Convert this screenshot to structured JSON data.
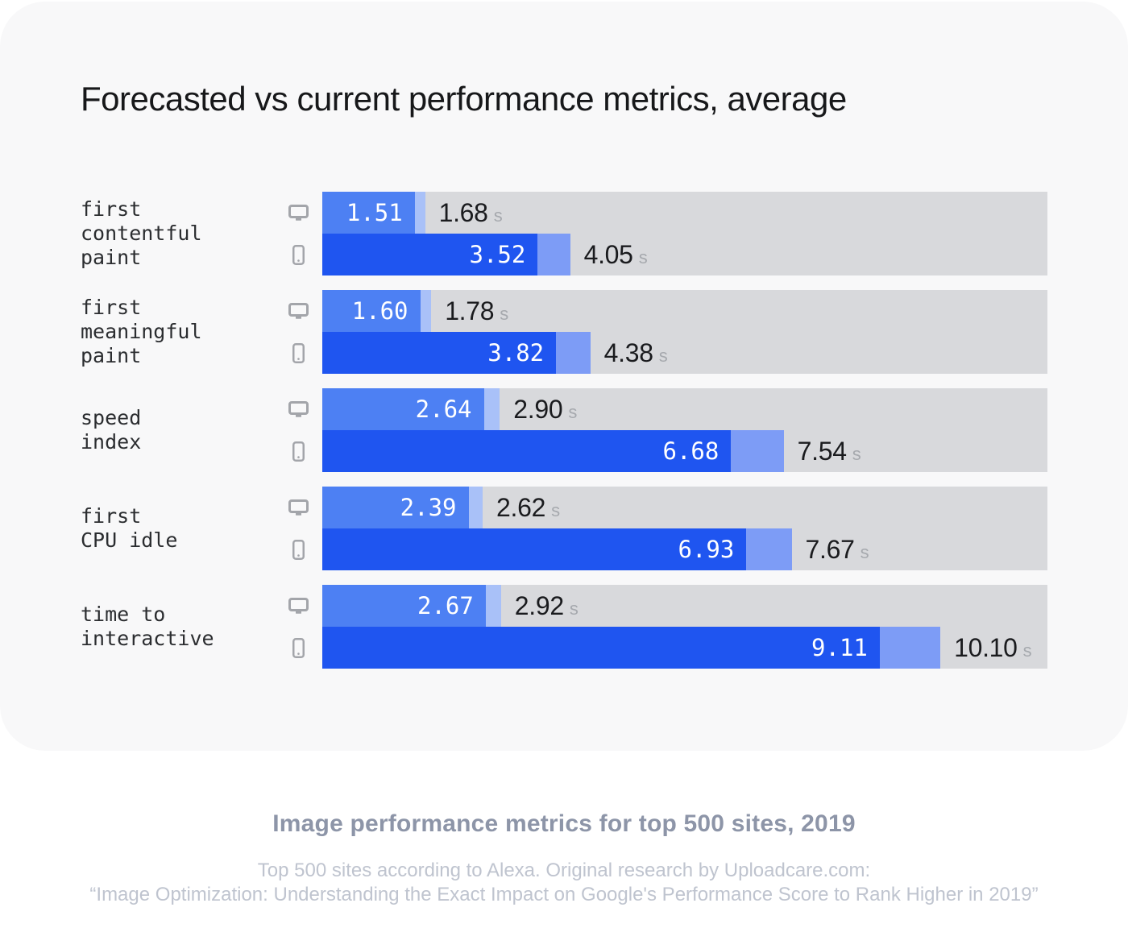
{
  "title": "Forecasted vs current performance metrics, average",
  "chart_data": {
    "type": "bar",
    "orientation": "horizontal",
    "title": "Forecasted vs current performance metrics, average",
    "unit": "s",
    "axis_max": 11.85,
    "legend": {
      "forecast_segment": "forecasted (solid blue, value in white)",
      "current_segment": "current (light blue extension, value in black)"
    },
    "devices": [
      "desktop",
      "mobile"
    ],
    "metrics": [
      {
        "label": "first\ncontentful\npaint",
        "desktop": {
          "forecast": "1.51",
          "current": "1.68"
        },
        "mobile": {
          "forecast": "3.52",
          "current": "4.05"
        }
      },
      {
        "label": "first\nmeaningful\npaint",
        "desktop": {
          "forecast": "1.60",
          "current": "1.78"
        },
        "mobile": {
          "forecast": "3.82",
          "current": "4.38"
        }
      },
      {
        "label": "speed\nindex",
        "desktop": {
          "forecast": "2.64",
          "current": "2.90"
        },
        "mobile": {
          "forecast": "6.68",
          "current": "7.54"
        }
      },
      {
        "label": "first\nCPU idle",
        "desktop": {
          "forecast": "2.39",
          "current": "2.62"
        },
        "mobile": {
          "forecast": "6.93",
          "current": "7.67"
        }
      },
      {
        "label": "time to\ninteractive",
        "desktop": {
          "forecast": "2.67",
          "current": "2.92"
        },
        "mobile": {
          "forecast": "9.11",
          "current": "10.10"
        }
      }
    ]
  },
  "icons": {
    "desktop": "desktop-monitor-icon",
    "mobile": "smartphone-icon"
  },
  "colors": {
    "card_background": "#f8f8f9",
    "page_background": "#ffffff",
    "desktop_forecast": "#4d80f3",
    "desktop_delta": "#a9c1f8",
    "mobile_forecast": "#1f55f0",
    "mobile_delta": "#7d9cf6",
    "track": "#d8d9dc",
    "icon_gray": "#a3a5aa",
    "unit_gray": "#a6a9ae",
    "footer_title_gray": "#8d95a8",
    "footer_note_gray": "#bfc4cf"
  },
  "footer": {
    "title": "Image performance metrics for top 500 sites, 2019",
    "note_line1": "Top 500 sites according to Alexa. Original research by Uploadcare.com:",
    "note_line2": "“Image Optimization: Understanding the Exact Impact on Google's Performance Score to Rank Higher in 2019”"
  }
}
